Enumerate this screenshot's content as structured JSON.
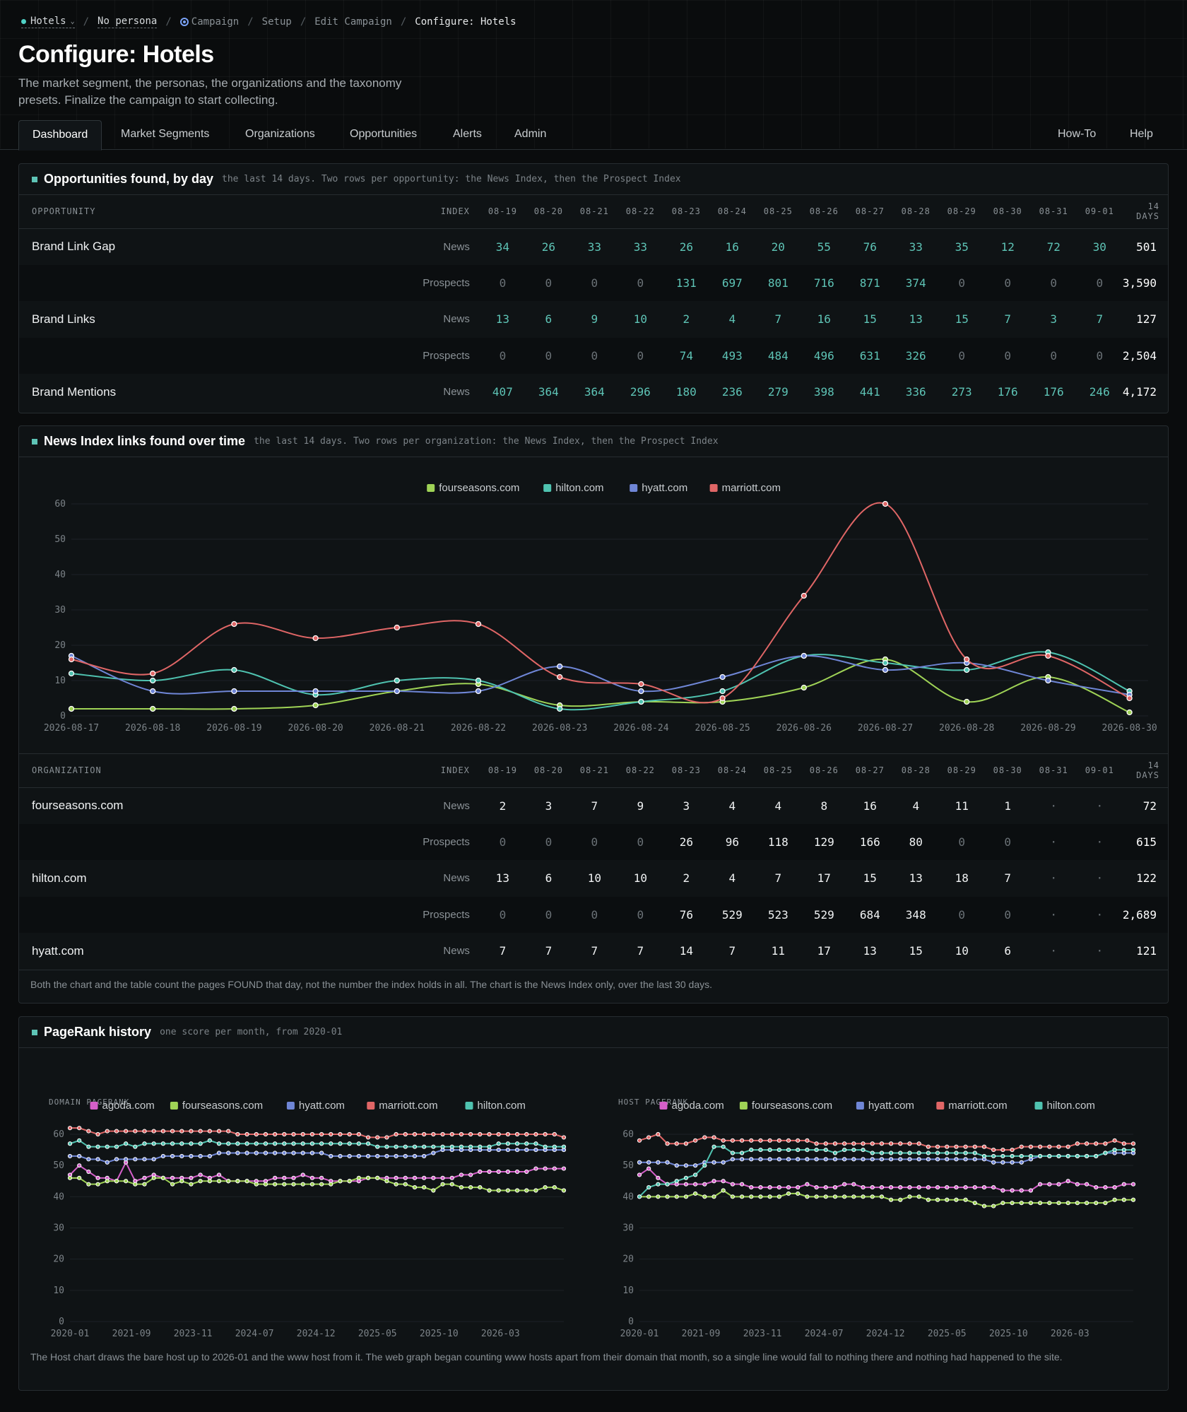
{
  "breadcrumb": {
    "segment": "Hotels",
    "persona": "No persona",
    "items": [
      "Campaign",
      "Setup",
      "Edit Campaign"
    ],
    "current": "Configure: Hotels"
  },
  "page": {
    "title": "Configure: Hotels",
    "subtitle": "The market segment, the personas, the organizations and the taxonomy presets. Finalize the campaign to start collecting."
  },
  "tabs": {
    "left": [
      "Dashboard",
      "Market Segments",
      "Organizations",
      "Opportunities",
      "Alerts",
      "Admin"
    ],
    "right": [
      "How-To",
      "Help"
    ],
    "active": "Dashboard"
  },
  "opportunities": {
    "title": "Opportunities found, by day",
    "subtitle": "the last 14 days. Two rows per opportunity: the News Index, then the Prospect Index",
    "col_name": "OPPORTUNITY",
    "col_index": "INDEX",
    "days": [
      "08-19",
      "08-20",
      "08-21",
      "08-22",
      "08-23",
      "08-24",
      "08-25",
      "08-26",
      "08-27",
      "08-28",
      "08-29",
      "08-30",
      "08-31",
      "09-01"
    ],
    "col_total": "14 DAYS",
    "rows": [
      {
        "name": "Brand Link Gap",
        "index": "News",
        "values": [
          "34",
          "26",
          "33",
          "33",
          "26",
          "16",
          "20",
          "55",
          "76",
          "33",
          "35",
          "12",
          "72",
          "30"
        ],
        "total": "501"
      },
      {
        "name": "",
        "index": "Prospects",
        "values": [
          "0",
          "0",
          "0",
          "0",
          "131",
          "697",
          "801",
          "716",
          "871",
          "374",
          "0",
          "0",
          "0",
          "0"
        ],
        "total": "3,590"
      },
      {
        "name": "Brand Links",
        "index": "News",
        "values": [
          "13",
          "6",
          "9",
          "10",
          "2",
          "4",
          "7",
          "16",
          "15",
          "13",
          "15",
          "7",
          "3",
          "7"
        ],
        "total": "127"
      },
      {
        "name": "",
        "index": "Prospects",
        "values": [
          "0",
          "0",
          "0",
          "0",
          "74",
          "493",
          "484",
          "496",
          "631",
          "326",
          "0",
          "0",
          "0",
          "0"
        ],
        "total": "2,504"
      },
      {
        "name": "Brand Mentions",
        "index": "News",
        "values": [
          "407",
          "364",
          "364",
          "296",
          "180",
          "236",
          "279",
          "398",
          "441",
          "336",
          "273",
          "176",
          "176",
          "246"
        ],
        "total": "4,172"
      }
    ]
  },
  "news_links": {
    "title": "News Index links found over time",
    "subtitle": "the last 14 days. Two rows per organization: the News Index, then the Prospect Index",
    "col_name": "ORGANIZATION",
    "col_index": "INDEX",
    "days": [
      "08-19",
      "08-20",
      "08-21",
      "08-22",
      "08-23",
      "08-24",
      "08-25",
      "08-26",
      "08-27",
      "08-28",
      "08-29",
      "08-30",
      "08-31",
      "09-01"
    ],
    "col_total": "14 DAYS",
    "rows": [
      {
        "name": "fourseasons.com",
        "index": "News",
        "values": [
          "2",
          "3",
          "7",
          "9",
          "3",
          "4",
          "4",
          "8",
          "16",
          "4",
          "11",
          "1",
          "·",
          "·"
        ],
        "total": "72"
      },
      {
        "name": "",
        "index": "Prospects",
        "values": [
          "0",
          "0",
          "0",
          "0",
          "26",
          "96",
          "118",
          "129",
          "166",
          "80",
          "0",
          "0",
          "·",
          "·"
        ],
        "total": "615"
      },
      {
        "name": "hilton.com",
        "index": "News",
        "values": [
          "13",
          "6",
          "10",
          "10",
          "2",
          "4",
          "7",
          "17",
          "15",
          "13",
          "18",
          "7",
          "·",
          "·"
        ],
        "total": "122"
      },
      {
        "name": "",
        "index": "Prospects",
        "values": [
          "0",
          "0",
          "0",
          "0",
          "76",
          "529",
          "523",
          "529",
          "684",
          "348",
          "0",
          "0",
          "·",
          "·"
        ],
        "total": "2,689"
      },
      {
        "name": "hyatt.com",
        "index": "News",
        "values": [
          "7",
          "7",
          "7",
          "7",
          "14",
          "7",
          "11",
          "17",
          "13",
          "15",
          "10",
          "6",
          "·",
          "·"
        ],
        "total": "121"
      }
    ],
    "note": "Both the chart and the table count the pages FOUND that day, not the number the index holds in all. The chart is the News Index only, over the last 30 days."
  },
  "pagerank": {
    "title": "PageRank history",
    "subtitle": "one score per month, from 2020-01",
    "note": "The Host chart draws the bare host up to 2026-01 and the www host from it. The web graph began counting www hosts apart from their domain that month, so a single line would fall to nothing there and nothing had happened to the site."
  },
  "colors": {
    "fourseasons.com": "#9fd356",
    "hilton.com": "#4fc3b0",
    "hyatt.com": "#6f86d6",
    "marriott.com": "#e06666",
    "agoda.com": "#d45fc9"
  },
  "chart_data": [
    {
      "type": "line",
      "x": [
        "2026-08-17",
        "2026-08-18",
        "2026-08-19",
        "2026-08-20",
        "2026-08-21",
        "2026-08-22",
        "2026-08-23",
        "2026-08-24",
        "2026-08-25",
        "2026-08-26",
        "2026-08-27",
        "2026-08-28",
        "2026-08-29",
        "2026-08-30"
      ],
      "x_tick_labels": [
        "2026-08-17",
        "2026-08-18",
        "2026-08-19",
        "2026-08-20",
        "2026-08-21",
        "2026-08-22",
        "2026-08-23",
        "2026-08-24",
        "2026-08-25",
        "2026-08-26",
        "2026-08-27",
        "2026-08-28",
        "2026-08-29",
        "2026-08-30"
      ],
      "ylim": [
        0,
        60
      ],
      "yticks": [
        0,
        10,
        20,
        30,
        40,
        50,
        60
      ],
      "legend": "top-center",
      "grid": true,
      "series": [
        {
          "name": "fourseasons.com",
          "values": [
            2,
            2,
            2,
            3,
            7,
            9,
            3,
            4,
            4,
            8,
            16,
            4,
            11,
            1
          ]
        },
        {
          "name": "hilton.com",
          "values": [
            12,
            10,
            13,
            6,
            10,
            10,
            2,
            4,
            7,
            17,
            15,
            13,
            18,
            7
          ]
        },
        {
          "name": "hyatt.com",
          "values": [
            17,
            7,
            7,
            7,
            7,
            7,
            14,
            7,
            11,
            17,
            13,
            15,
            10,
            6
          ]
        },
        {
          "name": "marriott.com",
          "values": [
            16,
            12,
            26,
            22,
            25,
            26,
            11,
            9,
            5,
            34,
            60,
            16,
            17,
            5
          ]
        }
      ]
    },
    {
      "type": "line",
      "ylabel": "DOMAIN PAGERANK",
      "x_tick_labels": [
        "2020-01",
        "2021-09",
        "2023-11",
        "2024-07",
        "2024-12",
        "2025-05",
        "2025-10",
        "2026-03"
      ],
      "ylim": [
        0,
        60
      ],
      "yticks": [
        0,
        10,
        20,
        30,
        40,
        50,
        60
      ],
      "legend": "top-center",
      "series": [
        {
          "name": "agoda.com",
          "values": [
            47,
            50,
            48,
            46,
            46,
            45,
            51,
            45,
            46,
            47,
            46,
            46,
            46,
            46,
            47,
            46,
            47,
            45,
            45,
            45,
            45,
            45,
            46,
            46,
            46,
            47,
            46,
            46,
            45,
            45,
            45,
            45,
            46,
            46,
            46,
            46,
            46,
            46,
            46,
            46,
            46,
            46,
            47,
            47,
            48,
            48,
            48,
            48,
            48,
            48,
            49,
            49,
            49,
            49
          ]
        },
        {
          "name": "fourseasons.com",
          "values": [
            46,
            46,
            44,
            44,
            45,
            45,
            45,
            44,
            44,
            46,
            46,
            44,
            45,
            44,
            45,
            45,
            45,
            45,
            45,
            45,
            44,
            44,
            44,
            44,
            44,
            44,
            44,
            44,
            44,
            45,
            45,
            46,
            46,
            46,
            45,
            44,
            44,
            43,
            43,
            42,
            44,
            44,
            43,
            43,
            43,
            42,
            42,
            42,
            42,
            42,
            42,
            43,
            43,
            42
          ]
        },
        {
          "name": "hyatt.com",
          "values": [
            53,
            53,
            52,
            52,
            51,
            52,
            52,
            52,
            52,
            52,
            53,
            53,
            53,
            53,
            53,
            53,
            54,
            54,
            54,
            54,
            54,
            54,
            54,
            54,
            54,
            54,
            54,
            54,
            53,
            53,
            53,
            53,
            53,
            53,
            53,
            53,
            53,
            53,
            53,
            54,
            55,
            55,
            55,
            55,
            55,
            55,
            55,
            55,
            55,
            55,
            55,
            55,
            55,
            55
          ]
        },
        {
          "name": "marriott.com",
          "values": [
            62,
            62,
            61,
            60,
            61,
            61,
            61,
            61,
            61,
            61,
            61,
            61,
            61,
            61,
            61,
            61,
            61,
            61,
            60,
            60,
            60,
            60,
            60,
            60,
            60,
            60,
            60,
            60,
            60,
            60,
            60,
            60,
            59,
            59,
            59,
            60,
            60,
            60,
            60,
            60,
            60,
            60,
            60,
            60,
            60,
            60,
            60,
            60,
            60,
            60,
            60,
            60,
            60,
            59
          ]
        },
        {
          "name": "hilton.com",
          "values": [
            57,
            58,
            56,
            56,
            56,
            56,
            57,
            56,
            57,
            57,
            57,
            57,
            57,
            57,
            57,
            58,
            57,
            57,
            57,
            57,
            57,
            57,
            57,
            57,
            57,
            57,
            57,
            57,
            57,
            57,
            57,
            57,
            57,
            56,
            56,
            56,
            56,
            56,
            56,
            56,
            56,
            56,
            56,
            56,
            56,
            56,
            57,
            57,
            57,
            57,
            57,
            56,
            56,
            56
          ]
        }
      ]
    },
    {
      "type": "line",
      "ylabel": "HOST PAGERANK",
      "x_tick_labels": [
        "2020-01",
        "2021-09",
        "2023-11",
        "2024-07",
        "2024-12",
        "2025-05",
        "2025-10",
        "2026-03"
      ],
      "ylim": [
        0,
        60
      ],
      "yticks": [
        0,
        10,
        20,
        30,
        40,
        50,
        60
      ],
      "legend": "top-center",
      "series": [
        {
          "name": "agoda.com",
          "values": [
            47,
            49,
            46,
            44,
            44,
            44,
            44,
            44,
            45,
            45,
            44,
            44,
            43,
            43,
            43,
            43,
            43,
            43,
            44,
            43,
            43,
            43,
            44,
            44,
            43,
            43,
            43,
            43,
            43,
            43,
            43,
            43,
            43,
            43,
            43,
            43,
            43,
            43,
            43,
            42,
            42,
            42,
            42,
            44,
            44,
            44,
            45,
            44,
            44,
            43,
            43,
            43,
            44,
            44
          ]
        },
        {
          "name": "fourseasons.com",
          "values": [
            40,
            40,
            40,
            40,
            40,
            40,
            41,
            40,
            40,
            42,
            40,
            40,
            40,
            40,
            40,
            40,
            41,
            41,
            40,
            40,
            40,
            40,
            40,
            40,
            40,
            40,
            40,
            39,
            39,
            40,
            40,
            39,
            39,
            39,
            39,
            39,
            38,
            37,
            37,
            38,
            38,
            38,
            38,
            38,
            38,
            38,
            38,
            38,
            38,
            38,
            38,
            39,
            39,
            39
          ]
        },
        {
          "name": "hyatt.com",
          "values": [
            51,
            51,
            51,
            51,
            50,
            50,
            50,
            51,
            51,
            51,
            52,
            52,
            52,
            52,
            52,
            52,
            52,
            52,
            52,
            52,
            52,
            52,
            52,
            52,
            52,
            52,
            52,
            52,
            52,
            52,
            52,
            52,
            52,
            52,
            52,
            52,
            52,
            52,
            51,
            51,
            51,
            51,
            52,
            53,
            53,
            53,
            53,
            53,
            53,
            53,
            54,
            54,
            54,
            54
          ]
        },
        {
          "name": "marriott.com",
          "values": [
            58,
            59,
            60,
            57,
            57,
            57,
            58,
            59,
            59,
            58,
            58,
            58,
            58,
            58,
            58,
            58,
            58,
            58,
            58,
            57,
            57,
            57,
            57,
            57,
            57,
            57,
            57,
            57,
            57,
            57,
            57,
            56,
            56,
            56,
            56,
            56,
            56,
            56,
            55,
            55,
            55,
            56,
            56,
            56,
            56,
            56,
            56,
            57,
            57,
            57,
            57,
            58,
            57,
            57
          ]
        },
        {
          "name": "hilton.com",
          "values": [
            40,
            43,
            44,
            44,
            45,
            46,
            47,
            50,
            56,
            56,
            54,
            54,
            55,
            55,
            55,
            55,
            55,
            55,
            55,
            55,
            55,
            54,
            55,
            55,
            55,
            54,
            54,
            54,
            54,
            54,
            54,
            54,
            54,
            54,
            54,
            54,
            54,
            53,
            53,
            53,
            53,
            53,
            53,
            53,
            53,
            53,
            53,
            53,
            53,
            53,
            54,
            55,
            55,
            55
          ]
        }
      ]
    }
  ]
}
